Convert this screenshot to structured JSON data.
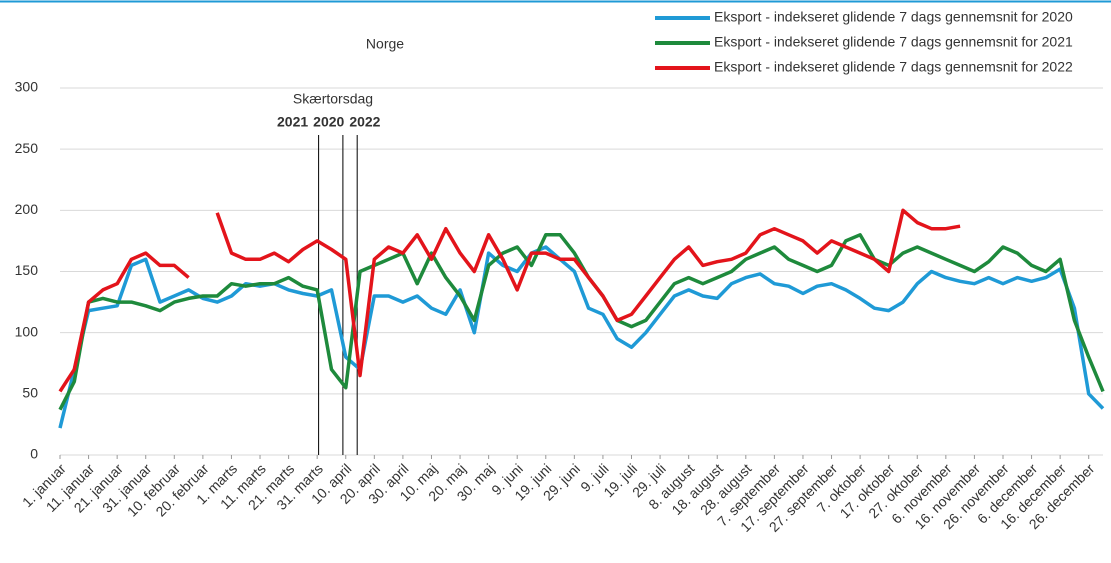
{
  "chart_data": {
    "type": "line",
    "title": "Norge",
    "x": [
      0,
      5,
      10,
      15,
      20,
      25,
      30,
      35,
      40,
      45,
      50,
      55,
      60,
      65,
      70,
      75,
      80,
      85,
      90,
      95,
      100,
      105,
      110,
      115,
      120,
      125,
      130,
      135,
      140,
      145,
      150,
      155,
      160,
      165,
      170,
      175,
      180,
      185,
      190,
      195,
      200,
      205,
      210,
      215,
      220,
      225,
      230,
      235,
      240,
      245,
      250,
      255,
      260,
      265,
      270,
      275,
      280,
      285,
      290,
      295,
      300,
      305,
      310,
      315,
      320,
      325,
      330,
      335,
      340,
      345,
      350,
      355,
      360,
      365
    ],
    "xlim": [
      0,
      365
    ],
    "xticks": [
      {
        "value": 0,
        "label": "1. januar"
      },
      {
        "value": 10,
        "label": "11. januar"
      },
      {
        "value": 20,
        "label": "21. januar"
      },
      {
        "value": 30,
        "label": "31. januar"
      },
      {
        "value": 40,
        "label": "10. februar"
      },
      {
        "value": 50,
        "label": "20. februar"
      },
      {
        "value": 60,
        "label": "1. marts"
      },
      {
        "value": 70,
        "label": "11. marts"
      },
      {
        "value": 80,
        "label": "21. marts"
      },
      {
        "value": 90,
        "label": "31. marts"
      },
      {
        "value": 100,
        "label": "10. april"
      },
      {
        "value": 110,
        "label": "20. april"
      },
      {
        "value": 120,
        "label": "30. april"
      },
      {
        "value": 130,
        "label": "10. maj"
      },
      {
        "value": 140,
        "label": "20. maj"
      },
      {
        "value": 150,
        "label": "30. maj"
      },
      {
        "value": 160,
        "label": "9. juni"
      },
      {
        "value": 170,
        "label": "19. juni"
      },
      {
        "value": 180,
        "label": "29. juni"
      },
      {
        "value": 190,
        "label": "9. juli"
      },
      {
        "value": 200,
        "label": "19. juli"
      },
      {
        "value": 210,
        "label": "29. juli"
      },
      {
        "value": 220,
        "label": "8. august"
      },
      {
        "value": 230,
        "label": "18. august"
      },
      {
        "value": 240,
        "label": "28. august"
      },
      {
        "value": 250,
        "label": "7. september"
      },
      {
        "value": 260,
        "label": "17. september"
      },
      {
        "value": 270,
        "label": "27. september"
      },
      {
        "value": 280,
        "label": "7. oktober"
      },
      {
        "value": 290,
        "label": "17. oktober"
      },
      {
        "value": 300,
        "label": "27. oktober"
      },
      {
        "value": 310,
        "label": "6. november"
      },
      {
        "value": 320,
        "label": "16. november"
      },
      {
        "value": 330,
        "label": "26. november"
      },
      {
        "value": 340,
        "label": "6. december"
      },
      {
        "value": 350,
        "label": "16. december"
      },
      {
        "value": 360,
        "label": "26. december"
      }
    ],
    "ylim": [
      0,
      300
    ],
    "yticks": [
      0,
      50,
      100,
      150,
      200,
      250,
      300
    ],
    "grid": true,
    "series": [
      {
        "name": "Eksport - indekseret glidende 7 dags gennemsnit for 2020",
        "color": "#1f9ad6",
        "values": [
          22,
          70,
          118,
          120,
          122,
          155,
          160,
          125,
          130,
          135,
          128,
          125,
          130,
          140,
          138,
          140,
          135,
          132,
          130,
          135,
          80,
          70,
          130,
          130,
          125,
          130,
          120,
          115,
          135,
          100,
          165,
          155,
          150,
          165,
          170,
          160,
          150,
          120,
          115,
          95,
          88,
          100,
          115,
          130,
          135,
          130,
          128,
          140,
          145,
          148,
          140,
          138,
          132,
          138,
          140,
          135,
          128,
          120,
          118,
          125,
          140,
          150,
          145,
          142,
          140,
          145,
          140,
          145,
          142,
          145,
          152,
          120,
          50,
          38
        ]
      },
      {
        "name": "Eksport - indekseret glidende 7 dags gennemsnit for 2021",
        "color": "#1e8a3c",
        "values": [
          37,
          60,
          125,
          128,
          125,
          125,
          122,
          118,
          125,
          128,
          130,
          130,
          140,
          138,
          140,
          140,
          145,
          138,
          135,
          70,
          55,
          150,
          155,
          160,
          165,
          140,
          165,
          145,
          130,
          110,
          155,
          165,
          170,
          155,
          180,
          180,
          165,
          145,
          130,
          110,
          105,
          110,
          125,
          140,
          145,
          140,
          145,
          150,
          160,
          165,
          170,
          160,
          155,
          150,
          155,
          175,
          180,
          160,
          155,
          165,
          170,
          165,
          160,
          155,
          150,
          158,
          170,
          165,
          155,
          150,
          160,
          110,
          80,
          52
        ]
      },
      {
        "name": "Eksport - indekseret glidende 7 dags gennemsnit for 2022",
        "color": "#e3141b",
        "values": [
          52,
          70,
          125,
          135,
          140,
          160,
          165,
          155,
          155,
          145,
          null,
          198,
          165,
          160,
          160,
          165,
          158,
          168,
          175,
          168,
          160,
          65,
          160,
          170,
          165,
          180,
          160,
          185,
          165,
          150,
          180,
          160,
          135,
          165,
          165,
          160,
          160,
          145,
          130,
          110,
          115,
          130,
          145,
          160,
          170,
          155,
          158,
          160,
          165,
          180,
          185,
          180,
          175,
          165,
          175,
          170,
          165,
          160,
          150,
          200,
          190,
          185,
          185,
          187,
          null,
          null,
          null,
          null,
          null,
          null,
          null,
          null,
          null,
          null
        ]
      }
    ],
    "annotation": {
      "text": "Skærtorsdag",
      "years": [
        {
          "text": "2021",
          "color": "#1e8a3c"
        },
        {
          "text": "2020",
          "color": "#1f9ad6"
        },
        {
          "text": "2022",
          "color": "#e3141b"
        }
      ],
      "lines": [
        90.5,
        99,
        104
      ]
    }
  }
}
